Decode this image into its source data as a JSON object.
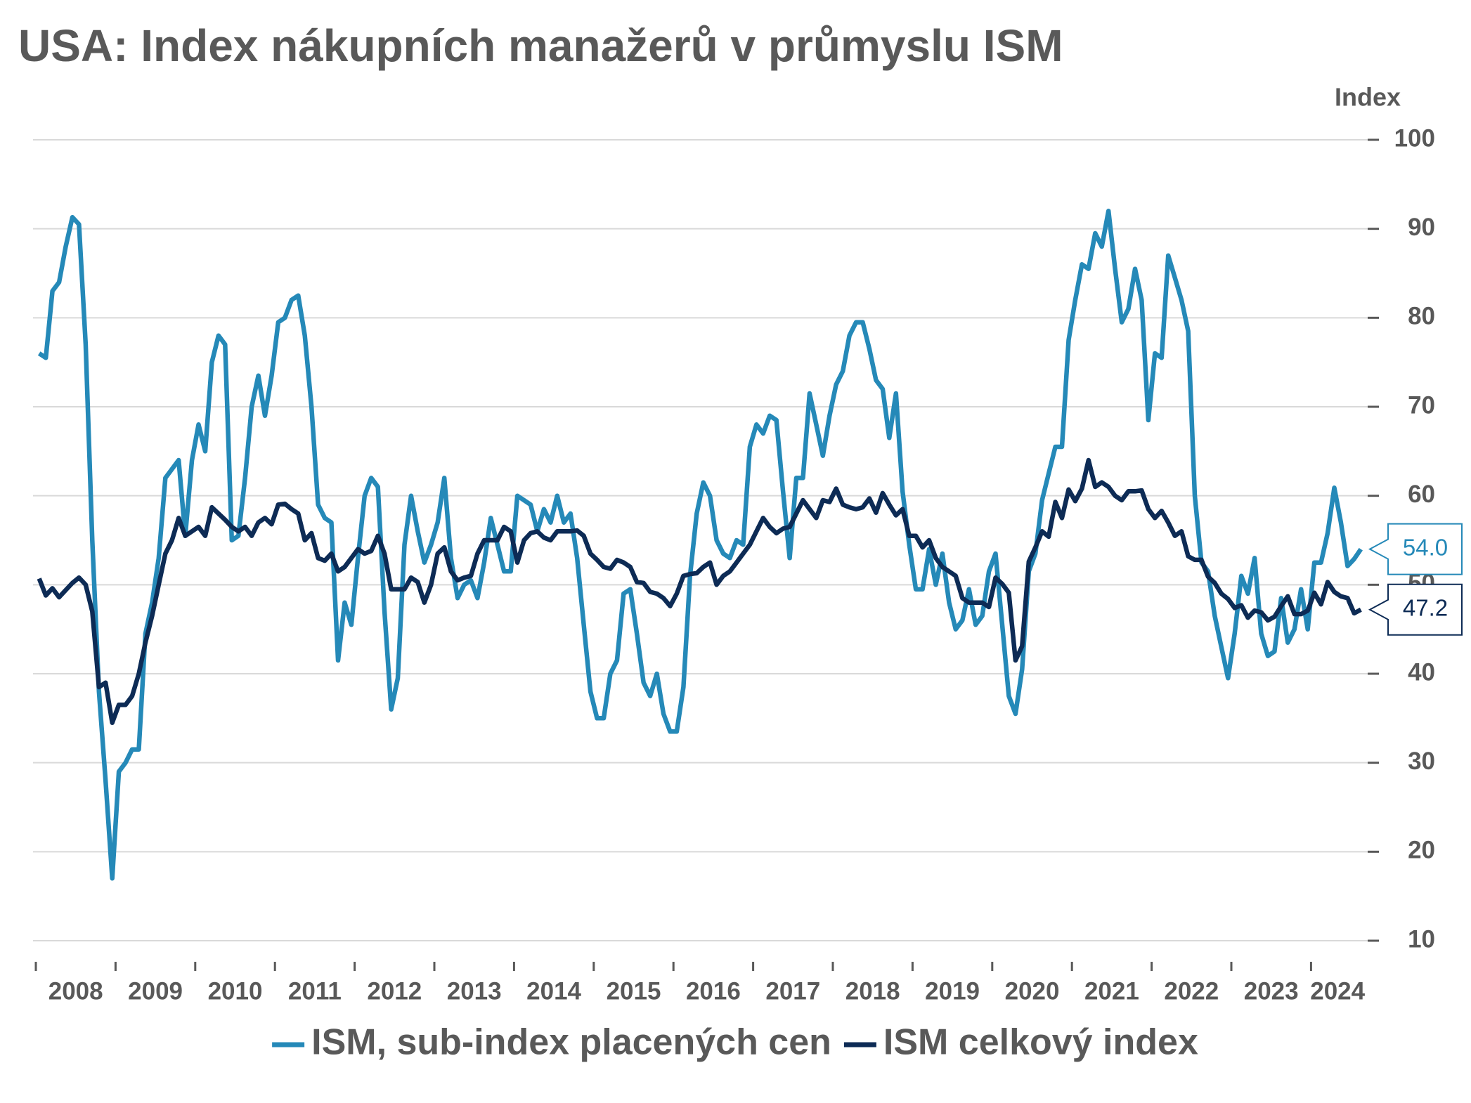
{
  "chart_data": {
    "type": "line",
    "title": "USA: Index nákupních manažerů v průmyslu ISM",
    "y_label": "Index",
    "categories": [
      "2008",
      null,
      null,
      null,
      null,
      null,
      null,
      null,
      null,
      null,
      null,
      null,
      "2009",
      null,
      null,
      null,
      null,
      null,
      null,
      null,
      null,
      null,
      null,
      null,
      "2010",
      null,
      null,
      null,
      null,
      null,
      null,
      null,
      null,
      null,
      null,
      null,
      "2011",
      null,
      null,
      null,
      null,
      null,
      null,
      null,
      null,
      null,
      null,
      null,
      "2012",
      null,
      null,
      null,
      null,
      null,
      null,
      null,
      null,
      null,
      null,
      null,
      "2013",
      null,
      null,
      null,
      null,
      null,
      null,
      null,
      null,
      null,
      null,
      null,
      "2014",
      null,
      null,
      null,
      null,
      null,
      null,
      null,
      null,
      null,
      null,
      null,
      "2015",
      null,
      null,
      null,
      null,
      null,
      null,
      null,
      null,
      null,
      null,
      null,
      "2016",
      null,
      null,
      null,
      null,
      null,
      null,
      null,
      null,
      null,
      null,
      null,
      "2017",
      null,
      null,
      null,
      null,
      null,
      null,
      null,
      null,
      null,
      null,
      null,
      "2018",
      null,
      null,
      null,
      null,
      null,
      null,
      null,
      null,
      null,
      null,
      null,
      "2019",
      null,
      null,
      null,
      null,
      null,
      null,
      null,
      null,
      null,
      null,
      null,
      "2020",
      null,
      null,
      null,
      null,
      null,
      null,
      null,
      null,
      null,
      null,
      null,
      "2021",
      null,
      null,
      null,
      null,
      null,
      null,
      null,
      null,
      null,
      null,
      null,
      "2022",
      null,
      null,
      null,
      null,
      null,
      null,
      null,
      null,
      null,
      null,
      null,
      "2023",
      null,
      null,
      null,
      null,
      null,
      null,
      null,
      null,
      null,
      null,
      null,
      "2024",
      null,
      null,
      null,
      null,
      null,
      null,
      null
    ],
    "series": [
      {
        "name": "ISM, sub-index placených cen",
        "color": "#2589b8",
        "end_label": "54.0",
        "values": [
          76,
          75.5,
          83,
          84,
          88,
          91.3,
          90.5,
          77,
          55,
          38,
          28,
          17,
          29,
          30,
          31.5,
          31.5,
          44.5,
          48,
          53,
          62,
          63,
          64,
          55.5,
          64,
          68,
          65,
          75,
          78,
          77,
          55,
          55.5,
          62,
          70,
          73.5,
          69,
          73.5,
          79.5,
          80,
          82,
          82.5,
          78,
          70,
          59,
          57.5,
          57,
          41.5,
          48,
          45.5,
          53,
          60,
          62,
          61,
          47,
          36,
          39.5,
          54.5,
          60,
          56,
          52.5,
          54.5,
          57,
          62,
          53,
          48.5,
          50,
          50.5,
          48.5,
          52.5,
          57.5,
          54.5,
          51.5,
          51.5,
          60,
          59.5,
          59,
          56,
          58.5,
          57,
          60,
          57,
          58,
          53,
          45.5,
          38,
          35,
          35,
          40,
          41.5,
          49,
          49.5,
          44.5,
          39,
          37.5,
          40,
          35.5,
          33.5,
          33.5,
          38.5,
          51,
          58,
          61.5,
          60,
          55,
          53.5,
          53,
          55,
          54.5,
          65.5,
          68,
          67,
          69,
          68.5,
          60.5,
          53,
          62,
          62,
          71.5,
          68,
          64.5,
          69,
          72.5,
          74,
          78,
          79.5,
          79.5,
          76.5,
          73,
          72,
          66.5,
          71.5,
          60.5,
          54.5,
          49.5,
          49.5,
          54,
          50,
          53.5,
          48,
          45,
          46,
          49.5,
          45.5,
          46.5,
          51.5,
          53.5,
          45.5,
          37.5,
          35.5,
          40.5,
          51.5,
          53.5,
          59.5,
          62.5,
          65.5,
          65.5,
          77.5,
          82,
          86,
          85.5,
          89.5,
          88,
          92,
          85.5,
          79.5,
          81,
          85.5,
          82,
          68.5,
          76,
          75.5,
          87,
          84.5,
          82,
          78.5,
          60,
          52.5,
          51.5,
          46.5,
          43,
          39.5,
          44.5,
          51,
          49,
          53,
          44.5,
          42,
          42.5,
          48.5,
          43.5,
          45,
          49.5,
          45,
          52.5,
          52.5,
          55.8,
          60.9,
          57,
          52.1,
          52.9,
          54
        ]
      },
      {
        "name": "ISM celkový index",
        "color": "#0d2b55",
        "end_label": "47.2",
        "values": [
          50.7,
          48.8,
          49.6,
          48.6,
          49.4,
          50.2,
          50.8,
          50,
          47,
          38.5,
          39,
          34.5,
          36.5,
          36.5,
          37.5,
          40,
          43.5,
          46.5,
          50,
          53.5,
          55,
          57.5,
          55.5,
          56,
          56.5,
          55.5,
          58.7,
          58,
          57.3,
          56.5,
          56,
          56.5,
          55.5,
          57,
          57.5,
          56.8,
          59,
          59.1,
          58.5,
          58,
          55,
          55.8,
          53,
          52.7,
          53.5,
          51.5,
          52,
          53,
          54,
          53.5,
          53.8,
          55.5,
          53.5,
          49.5,
          49.5,
          49.5,
          50.8,
          50.3,
          48,
          50,
          53.5,
          54.2,
          51.5,
          50.5,
          50.8,
          51,
          53.5,
          55,
          55,
          55,
          56.5,
          56,
          52.5,
          55,
          55.8,
          56,
          55.3,
          55,
          56,
          56,
          56,
          56.1,
          55.5,
          53.5,
          52.8,
          52,
          51.8,
          52.8,
          52.5,
          52,
          50.3,
          50.2,
          49.2,
          49,
          48.5,
          47.6,
          49,
          51,
          51.2,
          51.3,
          52,
          52.5,
          50,
          51,
          51.5,
          52.5,
          53.5,
          54.5,
          56,
          57.5,
          56.5,
          55.8,
          56.3,
          56.5,
          58,
          59.5,
          58.5,
          57.5,
          59.5,
          59.3,
          60.8,
          59,
          58.7,
          58.5,
          58.7,
          59.7,
          58.1,
          60.3,
          59,
          57.8,
          58.5,
          55.5,
          55.5,
          54.2,
          55,
          53,
          52,
          51.5,
          51,
          48.5,
          48,
          48,
          48,
          47.5,
          50.8,
          50.1,
          49.1,
          41.5,
          43.1,
          52.6,
          54.2,
          56,
          55.4,
          59.3,
          57.5,
          60.7,
          59.4,
          60.8,
          64,
          61,
          61.5,
          61,
          60,
          59.5,
          60.5,
          60.5,
          60.6,
          58.5,
          57.5,
          58.3,
          57,
          55.5,
          56,
          53.2,
          52.8,
          52.8,
          50.9,
          50.2,
          49,
          48.4,
          47.4,
          47.7,
          46.3,
          47.1,
          46.9,
          46,
          46.4,
          47.6,
          48.7,
          46.7,
          46.7,
          47.1,
          49.1,
          47.8,
          50.3,
          49.2,
          48.7,
          48.5,
          46.8,
          47.2
        ]
      }
    ],
    "ylim": [
      10,
      100
    ],
    "yticks": [
      10,
      20,
      30,
      40,
      50,
      60,
      70,
      80,
      90,
      100
    ],
    "grid": true,
    "legend": "bottom"
  }
}
